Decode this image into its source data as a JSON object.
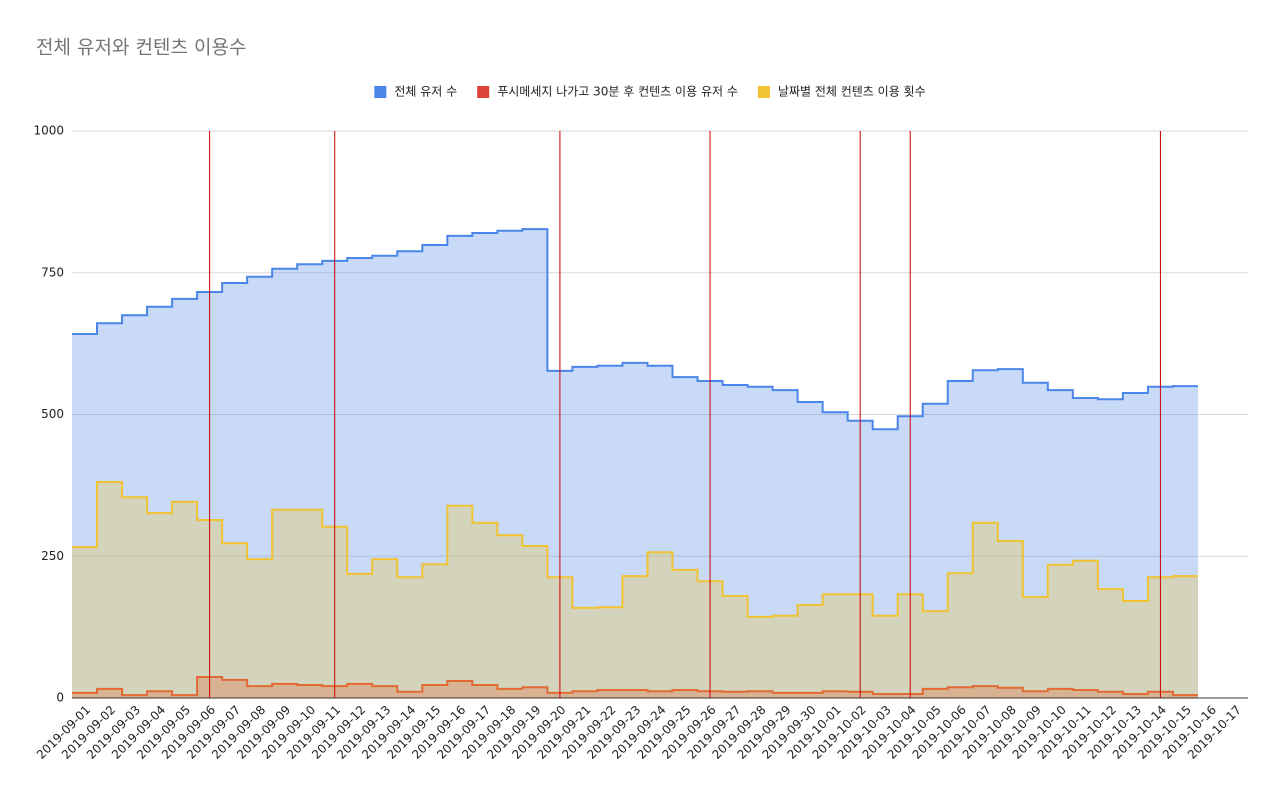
{
  "chart_data": {
    "type": "stepped-area",
    "title": "전체 유저와 컨텐츠 이용수",
    "categories": [
      "2019-09-01",
      "2019-09-02",
      "2019-09-03",
      "2019-09-04",
      "2019-09-05",
      "2019-09-06",
      "2019-09-07",
      "2019-09-08",
      "2019-09-09",
      "2019-09-10",
      "2019-09-11",
      "2019-09-12",
      "2019-09-13",
      "2019-09-14",
      "2019-09-15",
      "2019-09-16",
      "2019-09-17",
      "2019-09-18",
      "2019-09-19",
      "2019-09-20",
      "2019-09-21",
      "2019-09-22",
      "2019-09-23",
      "2019-09-24",
      "2019-09-25",
      "2019-09-26",
      "2019-09-27",
      "2019-09-28",
      "2019-09-29",
      "2019-09-30",
      "2019-10-01",
      "2019-10-02",
      "2019-10-03",
      "2019-10-04",
      "2019-10-05",
      "2019-10-06",
      "2019-10-07",
      "2019-10-08",
      "2019-10-09",
      "2019-10-10",
      "2019-10-11",
      "2019-10-12",
      "2019-10-13",
      "2019-10-14",
      "2019-10-15",
      "2019-10-16",
      "2019-10-17"
    ],
    "series": [
      {
        "name": "전체 유저 수",
        "color": "#4a86e8",
        "values": [
          642,
          661,
          675,
          690,
          704,
          716,
          732,
          743,
          757,
          765,
          771,
          776,
          780,
          788,
          799,
          815,
          820,
          824,
          827,
          577,
          584,
          586,
          591,
          586,
          566,
          559,
          552,
          549,
          543,
          522,
          504,
          489,
          474,
          497,
          519,
          559,
          578,
          580,
          556,
          543,
          529,
          527,
          538,
          549,
          550,
          null,
          null
        ]
      },
      {
        "name": "푸시메세지 나가고 30분 후 컨텐츠 이용 유저 수",
        "color": "#db4437",
        "values": [
          9,
          16,
          5,
          12,
          5,
          37,
          32,
          21,
          25,
          23,
          21,
          25,
          21,
          11,
          23,
          30,
          23,
          16,
          19,
          9,
          12,
          14,
          14,
          12,
          14,
          12,
          11,
          12,
          9,
          9,
          12,
          11,
          7,
          7,
          16,
          19,
          21,
          18,
          12,
          16,
          14,
          11,
          7,
          11,
          5,
          null,
          null
        ]
      },
      {
        "name": "날짜별 전체 컨텐츠 이용 횟수",
        "color": "#f1c232",
        "values": [
          266,
          381,
          354,
          326,
          346,
          314,
          273,
          245,
          332,
          332,
          302,
          219,
          245,
          213,
          236,
          339,
          309,
          287,
          268,
          213,
          159,
          160,
          215,
          257,
          226,
          206,
          180,
          143,
          145,
          164,
          183,
          183,
          145,
          183,
          153,
          220,
          309,
          277,
          178,
          235,
          242,
          192,
          171,
          213,
          215,
          null,
          null
        ]
      }
    ],
    "event_lines": {
      "color": "#cc0000",
      "x": [
        "2019-09-06",
        "2019-09-11",
        "2019-09-20",
        "2019-09-26",
        "2019-10-02",
        "2019-10-04",
        "2019-10-14"
      ]
    },
    "ylim": [
      0,
      1000
    ],
    "yticks": [
      0,
      250,
      500,
      750,
      1000
    ],
    "grid": true,
    "legend": "top"
  }
}
